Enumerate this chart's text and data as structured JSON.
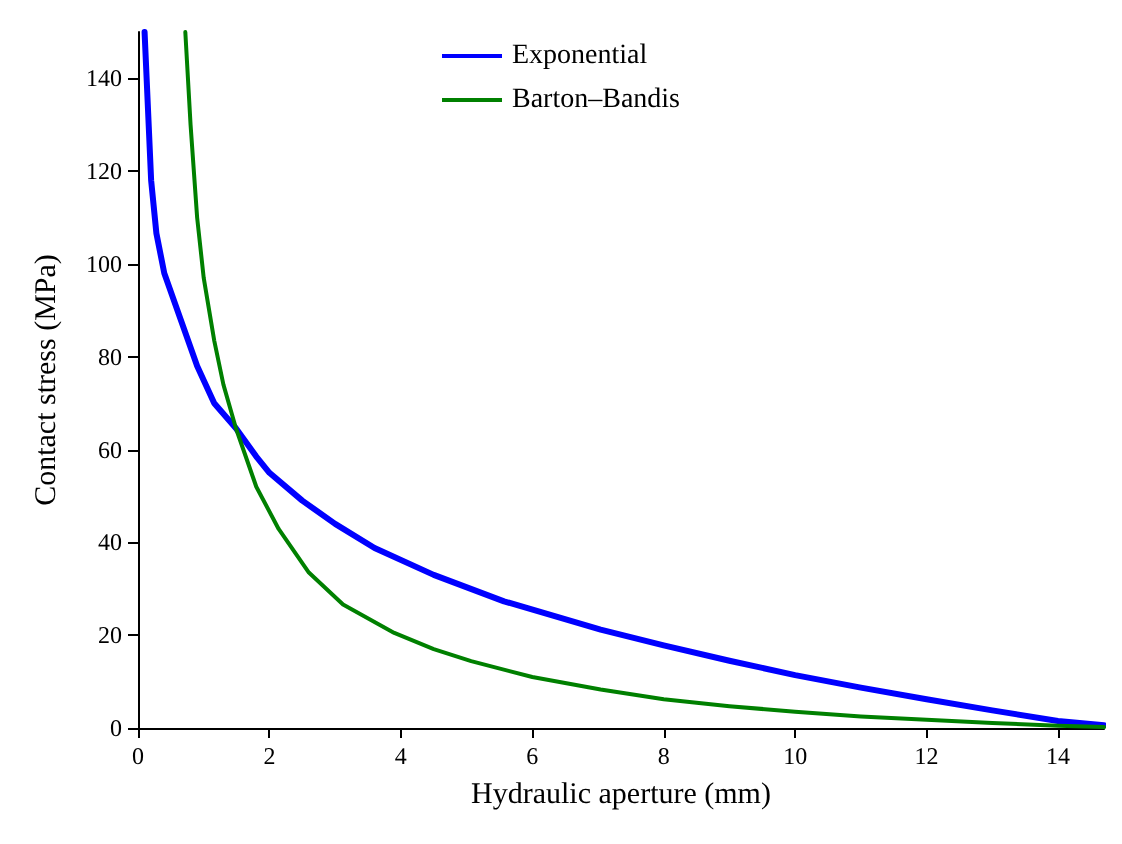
{
  "chart_data": {
    "type": "line",
    "xlabel": "Hydraulic aperture (mm)",
    "ylabel": "Contact stress (MPa)",
    "xlim": [
      0,
      14.7
    ],
    "xticks": [
      0,
      2,
      4,
      6,
      8,
      10,
      12,
      14
    ],
    "ylim": [
      0,
      150
    ],
    "yticks": [
      0,
      20,
      40,
      60,
      80,
      100,
      120,
      140
    ],
    "grid": false,
    "legend": "top",
    "marker": "none",
    "line_style": "solid",
    "series": [
      {
        "name": "Exponential",
        "color": "#0000ff",
        "x": [
          0.1,
          0.2,
          0.28,
          0.4,
          0.66,
          0.9,
          1.16,
          1.49,
          1.8,
          2,
          2.5,
          3,
          3.6,
          4.5,
          5.57,
          7.04,
          8,
          9,
          10,
          11,
          12,
          13,
          14,
          14.7
        ],
        "values": [
          150,
          118,
          106.6,
          98,
          87.6,
          78,
          70,
          64.6,
          58.5,
          55,
          49,
          44,
          38.8,
          33,
          27.3,
          21.2,
          17.8,
          14.5,
          11.4,
          8.7,
          6.2,
          3.8,
          1.5,
          0.6
        ]
      },
      {
        "name": "Barton–Bandis",
        "color": "#008000",
        "x": [
          0.72,
          0.8,
          0.9,
          1,
          1.16,
          1.3,
          1.49,
          1.8,
          2.14,
          2.6,
          3.12,
          3.9,
          4.5,
          5.07,
          6,
          7.04,
          8,
          9,
          10,
          11,
          12,
          13,
          14,
          14.7
        ],
        "values": [
          150,
          130,
          110,
          97,
          83.5,
          74,
          64.6,
          52,
          42.9,
          33.5,
          26.6,
          20.5,
          17,
          14.4,
          11,
          8.3,
          6.2,
          4.7,
          3.5,
          2.5,
          1.8,
          1.1,
          0.5,
          0.2
        ]
      }
    ]
  }
}
